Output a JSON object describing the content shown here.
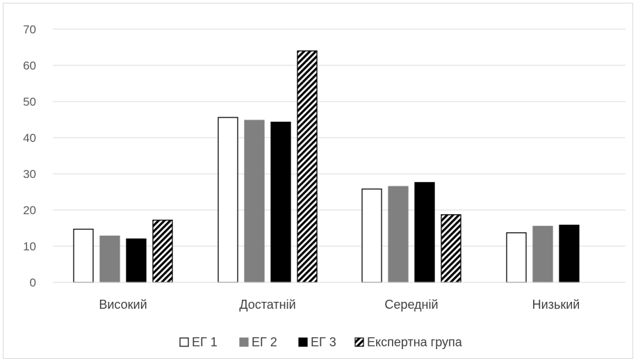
{
  "chart_data": {
    "type": "bar",
    "categories": [
      "Високий",
      "Достатній",
      "Середній",
      "Низький"
    ],
    "series": [
      {
        "name": "ЕГ 1",
        "values": [
          14.7,
          45.6,
          25.8,
          13.7
        ],
        "fill": "#ffffff",
        "stroke": "#000000",
        "pattern": "none"
      },
      {
        "name": "ЕГ 2",
        "values": [
          12.8,
          44.8,
          26.5,
          15.5
        ],
        "fill": "#808080",
        "stroke": "#808080",
        "pattern": "none"
      },
      {
        "name": "ЕГ 3",
        "values": [
          12.0,
          44.3,
          27.6,
          15.8
        ],
        "fill": "#000000",
        "stroke": "#000000",
        "pattern": "none"
      },
      {
        "name": "Експертна група",
        "values": [
          17.2,
          64.0,
          18.7,
          0
        ],
        "fill": "#000000",
        "stroke": "#000000",
        "pattern": "diagonal-stripes"
      }
    ],
    "ylim": [
      0,
      70
    ],
    "yticks": [
      0,
      10,
      20,
      30,
      40,
      50,
      60,
      70
    ],
    "grid": true,
    "legend": "bottom",
    "title": "",
    "xlabel": "",
    "ylabel": ""
  }
}
